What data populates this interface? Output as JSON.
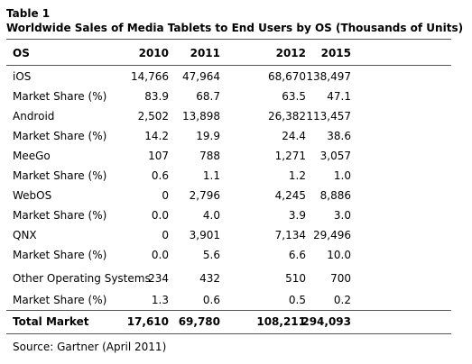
{
  "table": {
    "caption_line1": "Table 1",
    "caption_line2": "Worldwide Sales of Media Tablets to End Users by OS (Thousands of Units)",
    "columns": [
      "OS",
      "2010",
      "2011",
      "2012",
      "2015"
    ],
    "rows": [
      [
        "iOS",
        "14,766",
        "47,964",
        "68,670",
        "138,497"
      ],
      [
        "Market Share (%)",
        "83.9",
        "68.7",
        "63.5",
        "47.1"
      ],
      [
        "Android",
        "2,502",
        "13,898",
        "26,382",
        "113,457"
      ],
      [
        "Market Share (%)",
        "14.2",
        "19.9",
        "24.4",
        "38.6"
      ],
      [
        "MeeGo",
        "107",
        "788",
        "1,271",
        "3,057"
      ],
      [
        "Market Share (%)",
        "0.6",
        "1.1",
        "1.2",
        "1.0"
      ],
      [
        "WebOS",
        "0",
        "2,796",
        "4,245",
        "8,886"
      ],
      [
        "Market Share (%)",
        "0.0",
        "4.0",
        "3.9",
        "3.0"
      ],
      [
        "QNX",
        "0",
        "3,901",
        "7,134",
        "29,496"
      ],
      [
        "Market Share (%)",
        "0.0",
        "5.6",
        "6.6",
        "10.0"
      ],
      [
        "Other Operating Systems",
        "234",
        "432",
        "510",
        "700"
      ],
      [
        "Market Share (%)",
        "1.3",
        "0.6",
        "0.5",
        "0.2"
      ]
    ],
    "total": [
      "Total Market",
      "17,610",
      "69,780",
      "108,211",
      "294,093"
    ],
    "source": "Source: Gartner (April 2011)"
  }
}
